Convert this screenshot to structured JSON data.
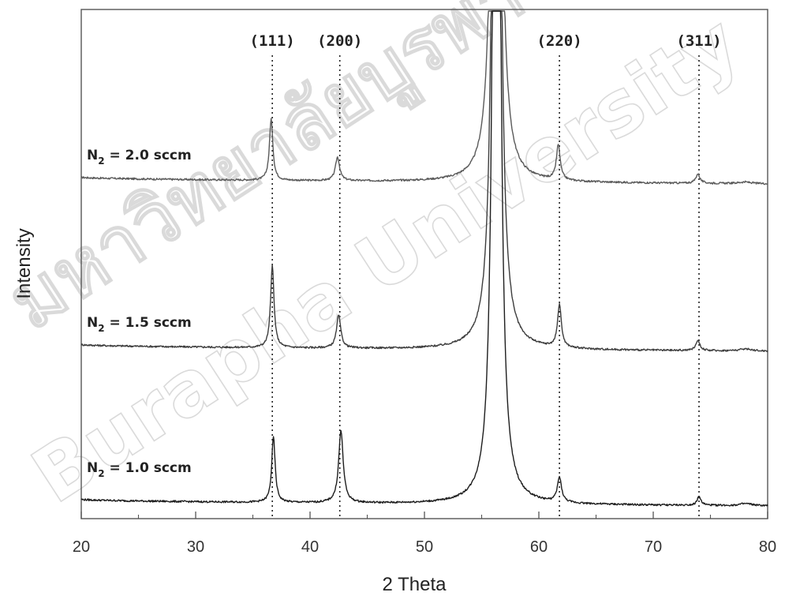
{
  "chart_data": {
    "type": "line",
    "xlabel": "2 Theta",
    "ylabel": "Intensity",
    "xlim": [
      20,
      80
    ],
    "xticks": [
      20,
      30,
      40,
      50,
      60,
      70,
      80
    ],
    "grid": false,
    "peak_labels": [
      {
        "label": "(111)",
        "x": 36.7
      },
      {
        "label": "(200)",
        "x": 42.6
      },
      {
        "label": "(220)",
        "x": 61.8
      },
      {
        "label": "(311)",
        "x": 74.0
      }
    ],
    "substrate_peak": {
      "x": 56.3
    },
    "series": [
      {
        "name": "2.0",
        "label_prefix": "N",
        "label_subscript": "2",
        "label_suffix": " = 2.0 sccm",
        "baseline_start": 0.9,
        "baseline_end": 0.575,
        "peaks": [
          {
            "x": 36.6,
            "height": 3.0,
            "width": 0.18
          },
          {
            "x": 42.4,
            "height": 1.15,
            "width": 0.22
          },
          {
            "x": 61.7,
            "height": 1.7,
            "width": 0.2
          },
          {
            "x": 73.9,
            "height": 0.45,
            "width": 0.22
          },
          {
            "x": 78.0,
            "height": 0.08,
            "width": 0.7
          }
        ]
      },
      {
        "name": "1.5",
        "label_prefix": "N",
        "label_subscript": "2",
        "label_suffix": " = 1.5 sccm",
        "baseline_start": 0.9,
        "baseline_end": 0.575,
        "peaks": [
          {
            "x": 36.7,
            "height": 4.0,
            "width": 0.18
          },
          {
            "x": 42.5,
            "height": 1.6,
            "width": 0.22
          },
          {
            "x": 61.8,
            "height": 2.1,
            "width": 0.2
          },
          {
            "x": 73.9,
            "height": 0.5,
            "width": 0.22
          },
          {
            "x": 78.1,
            "height": 0.1,
            "width": 0.7
          }
        ]
      },
      {
        "name": "1.0",
        "label_prefix": "N",
        "label_subscript": "2",
        "label_suffix": " = 1.0 sccm",
        "baseline_start": 0.9,
        "baseline_end": 0.575,
        "peaks": [
          {
            "x": 36.8,
            "height": 3.2,
            "width": 0.18
          },
          {
            "x": 42.7,
            "height": 3.5,
            "width": 0.24
          },
          {
            "x": 61.8,
            "height": 1.2,
            "width": 0.22
          },
          {
            "x": 74.0,
            "height": 0.4,
            "width": 0.22
          },
          {
            "x": 78.1,
            "height": 0.1,
            "width": 0.7
          }
        ]
      }
    ]
  },
  "watermark": {
    "text_thai": "มหาวิทยาลัยบูรพา",
    "text_english": "Burapha University"
  }
}
